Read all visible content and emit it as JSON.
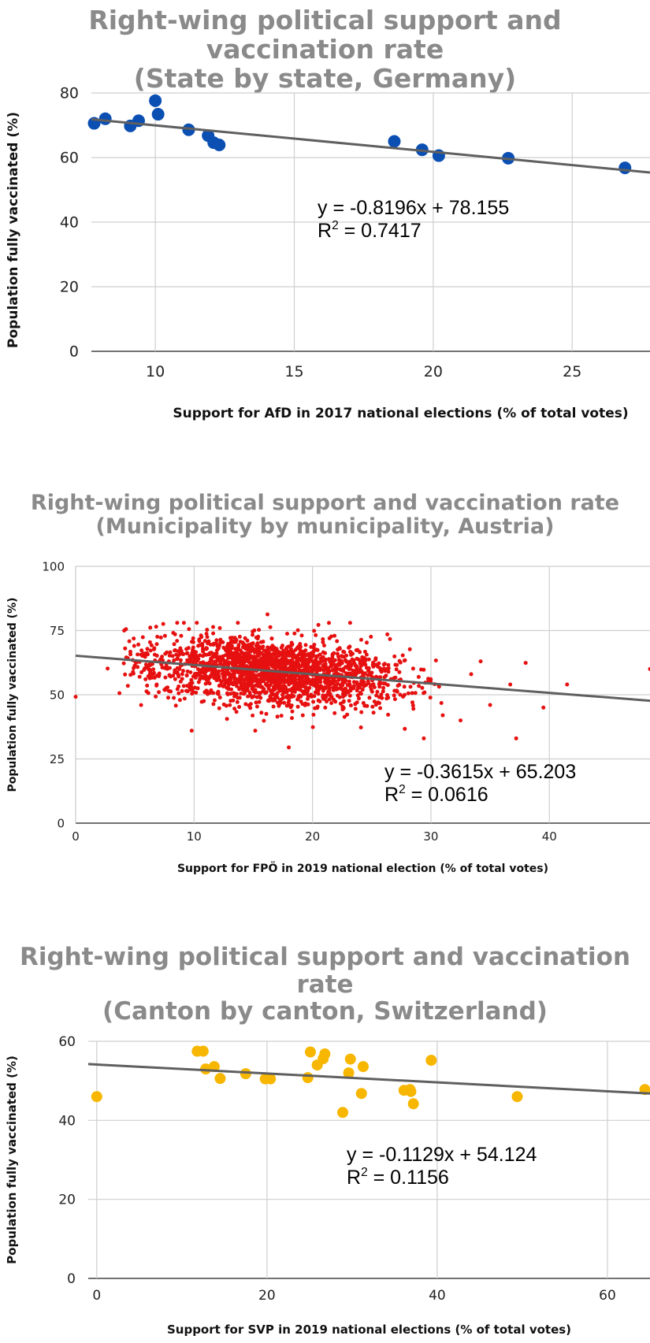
{
  "chart_data": [
    {
      "type": "scatter",
      "title_line1": "Right-wing political support and vaccination rate",
      "title_line2": "(State by state, Germany)",
      "xlabel": "Support for AfD in 2017 national elections (% of total votes)",
      "ylabel": "Population fully vaccinated (%)",
      "xlim": [
        7.7,
        27.8
      ],
      "ylim": [
        0,
        80
      ],
      "xticks": [
        10,
        15,
        20,
        25
      ],
      "xtick_labels": [
        "10",
        "15",
        "20",
        "25"
      ],
      "yticks": [
        0,
        20,
        40,
        60,
        80
      ],
      "ytick_labels": [
        "0",
        "20",
        "40",
        "60",
        "80"
      ],
      "grid": true,
      "point_color": "#0b4fb3",
      "trend_color": "#5f5f5f",
      "trendline": {
        "slope": -0.8196,
        "intercept": 78.155
      },
      "equation": "y = -0.8196x + 78.155",
      "r2_label": "R",
      "r2_sup": "2",
      "r2_value": " = 0.7417",
      "points": [
        {
          "x": 7.8,
          "y": 70.6
        },
        {
          "x": 8.2,
          "y": 72.0
        },
        {
          "x": 9.1,
          "y": 69.8
        },
        {
          "x": 9.4,
          "y": 71.4
        },
        {
          "x": 10.0,
          "y": 77.6
        },
        {
          "x": 10.1,
          "y": 73.4
        },
        {
          "x": 11.2,
          "y": 68.6
        },
        {
          "x": 11.9,
          "y": 66.8
        },
        {
          "x": 12.1,
          "y": 64.6
        },
        {
          "x": 12.3,
          "y": 63.9
        },
        {
          "x": 18.6,
          "y": 65.0
        },
        {
          "x": 19.6,
          "y": 62.4
        },
        {
          "x": 20.2,
          "y": 60.6
        },
        {
          "x": 22.7,
          "y": 59.8
        },
        {
          "x": 26.9,
          "y": 56.8
        }
      ]
    },
    {
      "type": "scatter",
      "title_line1": "Right-wing political support and vaccination rate",
      "title_line2": "(Municipality by municipality, Austria)",
      "xlabel": "Support for FPÖ in 2019 national election (% of total votes)",
      "ylabel": "Population fully vaccinated (%)",
      "xlim": [
        0,
        48.5
      ],
      "ylim": [
        0,
        100
      ],
      "xticks": [
        0,
        10,
        20,
        30,
        40
      ],
      "xtick_labels": [
        "0",
        "10",
        "20",
        "30",
        "40"
      ],
      "yticks": [
        0,
        25,
        50,
        75,
        100
      ],
      "ytick_labels": [
        "0",
        "25",
        "50",
        "75",
        "100"
      ],
      "grid": true,
      "point_color": "#e61010",
      "trend_color": "#5f5f5f",
      "trendline": {
        "slope": -0.3615,
        "intercept": 65.203
      },
      "equation": "y = -0.3615x + 65.203",
      "r2_label": "R",
      "r2_sup": "2",
      "r2_value": " = 0.0616",
      "cloud": {
        "count": 2100,
        "x_mean": 17.0,
        "x_sd": 5.2,
        "y_sd": 6.4
      },
      "points": [
        {
          "x": 0.0,
          "y": 49.2
        },
        {
          "x": 2.7,
          "y": 60.2
        },
        {
          "x": 3.7,
          "y": 50.6
        },
        {
          "x": 4.1,
          "y": 75.0
        },
        {
          "x": 6.8,
          "y": 76.5
        },
        {
          "x": 9.8,
          "y": 36.0
        },
        {
          "x": 18.0,
          "y": 29.5
        },
        {
          "x": 16.2,
          "y": 81.3
        },
        {
          "x": 20.5,
          "y": 77.2
        },
        {
          "x": 29.4,
          "y": 33.0
        },
        {
          "x": 33.4,
          "y": 58.0
        },
        {
          "x": 34.2,
          "y": 63.0
        },
        {
          "x": 36.7,
          "y": 54.0
        },
        {
          "x": 37.2,
          "y": 33.0
        },
        {
          "x": 38.0,
          "y": 62.4
        },
        {
          "x": 39.5,
          "y": 45.0
        },
        {
          "x": 41.5,
          "y": 54.0
        },
        {
          "x": 48.5,
          "y": 60.0
        },
        {
          "x": 35.0,
          "y": 46.0
        },
        {
          "x": 32.5,
          "y": 40.0
        },
        {
          "x": 31.0,
          "y": 42.0
        }
      ]
    },
    {
      "type": "scatter",
      "title_line1": "Right-wing political support and vaccination rate",
      "title_line2": "(Canton by canton, Switzerland)",
      "xlabel": "Support for SVP in 2019 national elections (% of total votes)",
      "ylabel": "Population fully vaccinated (%)",
      "xlim": [
        -1,
        65
      ],
      "ylim": [
        0,
        60
      ],
      "xticks": [
        0,
        20,
        40,
        60
      ],
      "xtick_labels": [
        "0",
        "20",
        "40",
        "60"
      ],
      "yticks": [
        0,
        20,
        40,
        60
      ],
      "ytick_labels": [
        "0",
        "20",
        "40",
        "60"
      ],
      "grid": true,
      "point_color": "#f7b600",
      "trend_color": "#5f5f5f",
      "trendline": {
        "slope": -0.1129,
        "intercept": 54.124
      },
      "equation": "y = -0.1129x + 54.124",
      "r2_label": "R",
      "r2_sup": "2",
      "r2_value": " = 0.1156",
      "points": [
        {
          "x": 0.0,
          "y": 46.0
        },
        {
          "x": 11.8,
          "y": 57.5
        },
        {
          "x": 12.5,
          "y": 57.5
        },
        {
          "x": 12.8,
          "y": 53.0
        },
        {
          "x": 13.8,
          "y": 53.6
        },
        {
          "x": 14.5,
          "y": 50.6
        },
        {
          "x": 17.5,
          "y": 51.8
        },
        {
          "x": 19.8,
          "y": 50.5
        },
        {
          "x": 20.4,
          "y": 50.5
        },
        {
          "x": 24.8,
          "y": 50.8
        },
        {
          "x": 25.1,
          "y": 57.3
        },
        {
          "x": 25.9,
          "y": 54.0
        },
        {
          "x": 26.6,
          "y": 55.6
        },
        {
          "x": 26.8,
          "y": 56.8
        },
        {
          "x": 28.9,
          "y": 42.0
        },
        {
          "x": 29.6,
          "y": 52.0
        },
        {
          "x": 29.8,
          "y": 55.5
        },
        {
          "x": 31.1,
          "y": 46.8
        },
        {
          "x": 31.3,
          "y": 53.6
        },
        {
          "x": 36.1,
          "y": 47.6
        },
        {
          "x": 36.8,
          "y": 47.8
        },
        {
          "x": 36.9,
          "y": 47.3
        },
        {
          "x": 37.2,
          "y": 44.2
        },
        {
          "x": 39.3,
          "y": 55.2
        },
        {
          "x": 49.4,
          "y": 46.0
        },
        {
          "x": 64.4,
          "y": 47.8
        }
      ]
    }
  ]
}
